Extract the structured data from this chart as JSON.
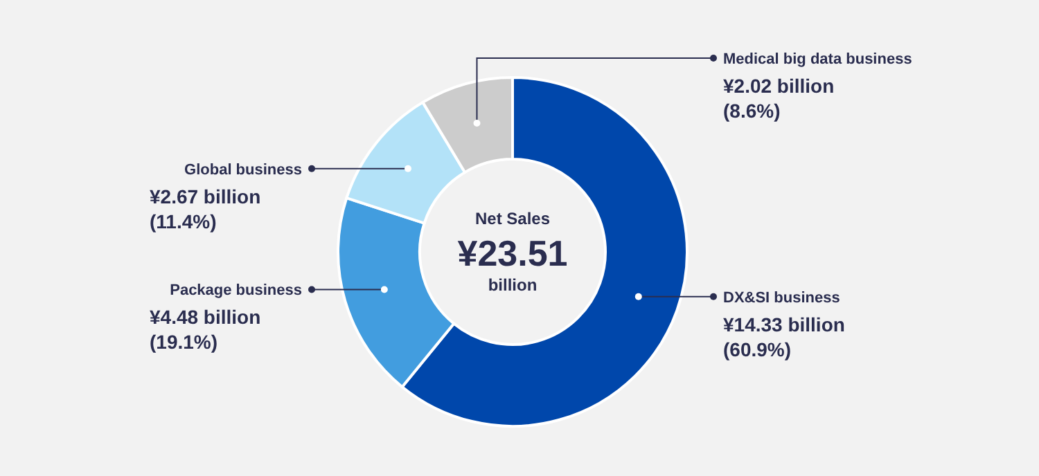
{
  "chart_data": {
    "type": "donut",
    "categories": [
      "DX&SI business",
      "Package business",
      "Global business",
      "Medical big data business"
    ],
    "values": [
      60.9,
      19.1,
      11.4,
      8.6
    ],
    "colors": [
      "#0047ab",
      "#429ddf",
      "#b3e2f8",
      "#cccccc"
    ],
    "value_labels": [
      "¥14.33 billion\n(60.9%)",
      "¥4.48 billion\n(19.1%)",
      "¥2.67 billion\n(11.4%)",
      "¥2.02 billion\n(8.6%)"
    ],
    "annotations": [
      "Net Sales",
      "¥23.51",
      "billion"
    ]
  }
}
